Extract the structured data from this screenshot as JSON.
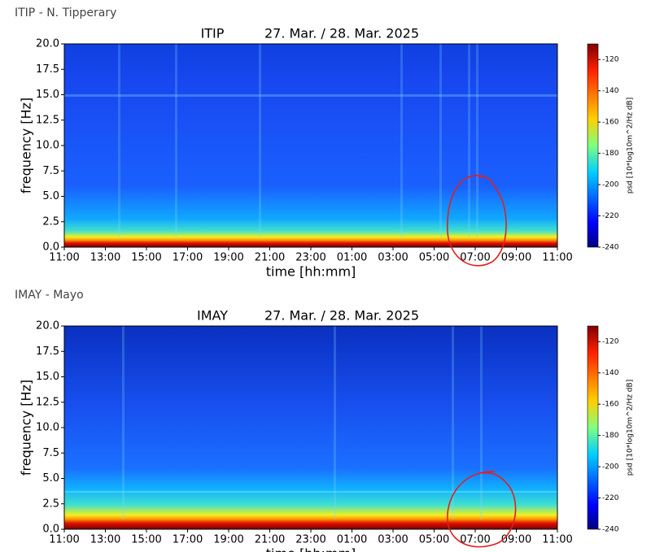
{
  "page_headings": [
    "ITIP - N. Tipperary",
    "IMAY - Mayo"
  ],
  "chart_data": [
    {
      "type": "spectrogram",
      "title": "ITIP",
      "subtitle": "27. Mar. / 28. Mar. 2025",
      "categories": [
        "11:00",
        "13:00",
        "15:00",
        "17:00",
        "19:00",
        "21:00",
        "23:00",
        "01:00",
        "03:00",
        "05:00",
        "07:00",
        "09:00",
        "11:00"
      ],
      "x_label": "time [hh:mm]",
      "y_label": "frequency [Hz]",
      "ylim": [
        0,
        20
      ],
      "yticks": [
        {
          "value": 0,
          "label": "0.0"
        },
        2.5,
        {
          "value": 5,
          "label": "5.0"
        },
        7.5,
        {
          "value": 10,
          "label": "10.0"
        },
        12.5,
        {
          "value": 15,
          "label": "15.0"
        },
        17.5,
        {
          "value": 20,
          "label": "20.0"
        }
      ],
      "colorbar": {
        "label": "psd [10*log10m^2/Hz dB]",
        "lim": [
          -240,
          -110
        ],
        "ticks": [
          -240,
          -220,
          -200,
          -180,
          -160,
          -140,
          -120
        ]
      }
    },
    {
      "type": "spectrogram",
      "title": "IMAY",
      "subtitle": "27. Mar. / 28. Mar. 2025",
      "categories": [
        "11:00",
        "13:00",
        "15:00",
        "17:00",
        "19:00",
        "21:00",
        "23:00",
        "01:00",
        "03:00",
        "05:00",
        "07:00",
        "09:00",
        "11:00"
      ],
      "x_label": "time [hh:mm]",
      "y_label": "frequency [Hz]",
      "ylim": [
        0,
        20
      ],
      "yticks": [
        {
          "value": 0,
          "label": "0.0"
        },
        2.5,
        {
          "value": 5,
          "label": "5.0"
        },
        7.5,
        {
          "value": 10,
          "label": "10.0"
        },
        12.5,
        {
          "value": 15,
          "label": "15.0"
        },
        17.5,
        {
          "value": 20,
          "label": "20.0"
        }
      ],
      "colorbar": {
        "label": "psd [10*log10m^2/Hz dB]",
        "lim": [
          -240,
          -110
        ],
        "ticks": [
          -240,
          -220,
          -200,
          -180,
          -160,
          -140,
          -120
        ]
      }
    }
  ]
}
